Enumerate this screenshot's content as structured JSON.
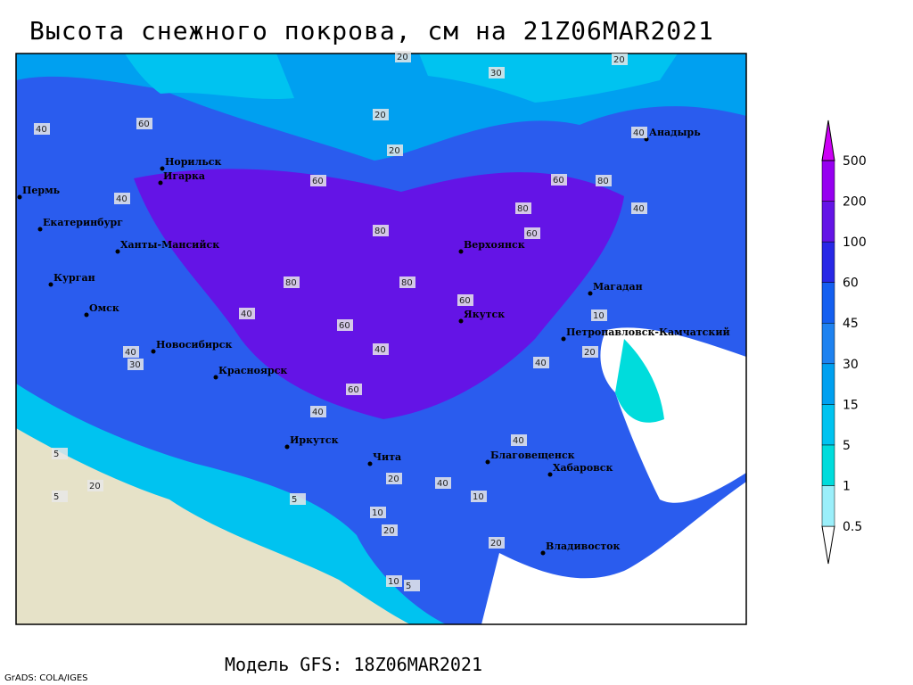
{
  "header": {
    "title": "Высота снежного покрова, см на 21Z06MAR2021"
  },
  "footer": {
    "model": "Модель GFS: 18Z06MAR2021",
    "credit": "GrADS: COLA/IGES"
  },
  "colorbar": {
    "levels": [
      0.5,
      1,
      5,
      15,
      30,
      45,
      60,
      100,
      200,
      500
    ],
    "colors": [
      "#ffffff",
      "#9beffa",
      "#00dcdc",
      "#00c3f0",
      "#00a0f0",
      "#1e82f0",
      "#145ff0",
      "#2828e6",
      "#6414e6",
      "#9600f0",
      "#cc00f5"
    ]
  },
  "cities": [
    "Анадырь",
    "Норильск",
    "Игарка",
    "Пермь",
    "Екатеринбург",
    "Ханты-Мансийск",
    "Курган",
    "Омск",
    "Новосибирск",
    "Красноярск",
    "Иркутск",
    "Чита",
    "Верхоянск",
    "Якутск",
    "Магадан",
    "Петропавловск-Камчатский",
    "Благовещенск",
    "Хабаровск",
    "Владивосток"
  ],
  "contour_labels": [
    20,
    30,
    20,
    20,
    40,
    20,
    40,
    60,
    40,
    60,
    80,
    80,
    60,
    80,
    40,
    60,
    80,
    80,
    60,
    40,
    60,
    40,
    20,
    10,
    20,
    5,
    40,
    60,
    40,
    30,
    40,
    40,
    20,
    10,
    20,
    10,
    5,
    40,
    5,
    10,
    20,
    5
  ]
}
